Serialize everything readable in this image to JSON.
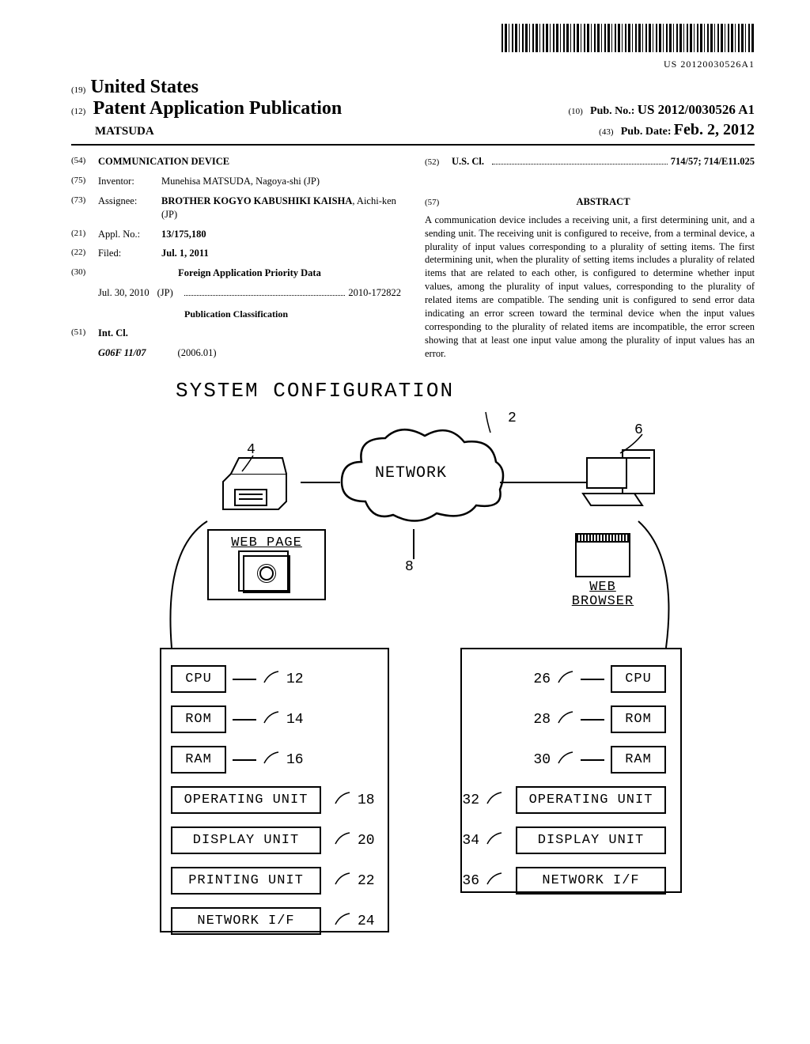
{
  "barcode_text": "US 20120030526A1",
  "header": {
    "code19": "(19)",
    "country": "United States",
    "code12": "(12)",
    "pub_type": "Patent Application Publication",
    "author": "MATSUDA",
    "code10": "(10)",
    "pubno_label": "Pub. No.:",
    "pubno": "US 2012/0030526 A1",
    "code43": "(43)",
    "pubdate_label": "Pub. Date:",
    "pubdate": "Feb. 2, 2012"
  },
  "left": {
    "f54": {
      "code": "(54)",
      "val": "COMMUNICATION DEVICE"
    },
    "f75": {
      "code": "(75)",
      "label": "Inventor:",
      "val": "Munehisa MATSUDA, Nagoya-shi (JP)"
    },
    "f73": {
      "code": "(73)",
      "label": "Assignee:",
      "val_bold": "BROTHER KOGYO KABUSHIKI KAISHA",
      "val_rest": ", Aichi-ken (JP)"
    },
    "f21": {
      "code": "(21)",
      "label": "Appl. No.:",
      "val": "13/175,180"
    },
    "f22": {
      "code": "(22)",
      "label": "Filed:",
      "val": "Jul. 1, 2011"
    },
    "f30": {
      "code": "(30)",
      "title": "Foreign Application Priority Data"
    },
    "priority": {
      "date": "Jul. 30, 2010",
      "cc": "(JP)",
      "num": "2010-172822"
    },
    "pubclass_title": "Publication Classification",
    "f51": {
      "code": "(51)",
      "label": "Int. Cl.",
      "cls": "G06F 11/07",
      "year": "(2006.01)"
    }
  },
  "right": {
    "f52": {
      "code": "(52)",
      "label": "U.S. Cl.",
      "val": "714/57; 714/E11.025"
    },
    "f57": {
      "code": "(57)",
      "title": "ABSTRACT"
    },
    "abstract": "A communication device includes a receiving unit, a first determining unit, and a sending unit. The receiving unit is configured to receive, from a terminal device, a plurality of input values corresponding to a plurality of setting items. The first determining unit, when the plurality of setting items includes a plurality of related items that are related to each other, is configured to determine whether input values, among the plurality of input values, corresponding to the plurality of related items are compatible. The sending unit is configured to send error data indicating an error screen toward the terminal device when the input values corresponding to the plurality of related items are incompatible, the error screen showing that at least one input value among the plurality of input values has an error."
  },
  "diagram": {
    "title": "SYSTEM CONFIGURATION",
    "cloud": "NETWORK",
    "ref2": "2",
    "ref4": "4",
    "ref6": "6",
    "ref8": "8",
    "webpage": "WEB PAGE",
    "browser_l1": "WEB",
    "browser_l2": "BROWSER",
    "left_units": [
      {
        "name": "CPU",
        "ref": "12"
      },
      {
        "name": "ROM",
        "ref": "14"
      },
      {
        "name": "RAM",
        "ref": "16"
      },
      {
        "name": "OPERATING UNIT",
        "ref": "18"
      },
      {
        "name": "DISPLAY UNIT",
        "ref": "20"
      },
      {
        "name": "PRINTING UNIT",
        "ref": "22"
      },
      {
        "name": "NETWORK I/F",
        "ref": "24"
      }
    ],
    "right_units": [
      {
        "name": "CPU",
        "ref": "26"
      },
      {
        "name": "ROM",
        "ref": "28"
      },
      {
        "name": "RAM",
        "ref": "30"
      },
      {
        "name": "OPERATING UNIT",
        "ref": "32"
      },
      {
        "name": "DISPLAY UNIT",
        "ref": "34"
      },
      {
        "name": "NETWORK I/F",
        "ref": "36"
      }
    ]
  }
}
